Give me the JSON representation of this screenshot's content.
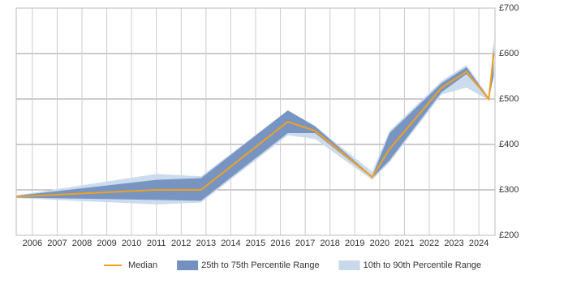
{
  "chart_data": {
    "type": "line",
    "x": [
      2005.35,
      2011,
      2012.8,
      2016.3,
      2017.4,
      2019.7,
      2020.4,
      2022.5,
      2023.5,
      2024.4,
      2024.6
    ],
    "series": [
      {
        "name": "Median",
        "color": "#f0a020",
        "values": [
          285,
          300,
          300,
          450,
          430,
          328,
          390,
          525,
          560,
          500,
          600
        ]
      },
      {
        "name": "25th to 75th Percentile Range",
        "color": "#7391c0",
        "lower": [
          283,
          278,
          276,
          425,
          425,
          326,
          365,
          515,
          555,
          500,
          550
        ],
        "upper": [
          287,
          322,
          326,
          475,
          440,
          330,
          425,
          535,
          570,
          502,
          620
        ]
      },
      {
        "name": "10th to 90th Percentile Range",
        "color": "#c9d9ec",
        "lower": [
          282,
          268,
          272,
          420,
          412,
          322,
          360,
          510,
          525,
          498,
          550
        ],
        "upper": [
          288,
          335,
          330,
          475,
          440,
          340,
          430,
          540,
          575,
          505,
          635
        ]
      }
    ],
    "xlim": [
      2005.35,
      2024.65
    ],
    "xticks": [
      2006,
      2007,
      2008,
      2009,
      2010,
      2011,
      2012,
      2013,
      2014,
      2015,
      2016,
      2017,
      2018,
      2019,
      2020,
      2021,
      2022,
      2023,
      2024
    ],
    "ylim": [
      200,
      700
    ],
    "yticks": [
      {
        "value": 200,
        "label": "£200"
      },
      {
        "value": 300,
        "label": "£300"
      },
      {
        "value": 400,
        "label": "£400"
      },
      {
        "value": 500,
        "label": "£500"
      },
      {
        "value": 600,
        "label": "£600"
      },
      {
        "value": 700,
        "label": "£700"
      }
    ],
    "grid": true,
    "legend": "bottom"
  }
}
